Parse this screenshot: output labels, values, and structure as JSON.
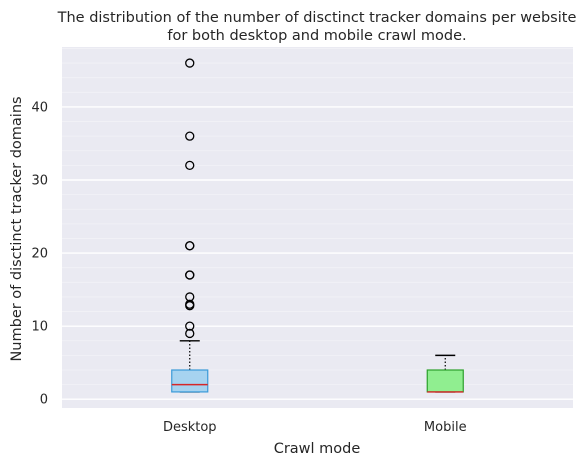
{
  "chart_data": {
    "type": "box",
    "title": "The distribution of the number of disctinct tracker domains per website\nfor both desktop and mobile crawl mode.",
    "xlabel": "Crawl mode",
    "ylabel": "Number of disctinct tracker domains",
    "categories": [
      "Desktop",
      "Mobile"
    ],
    "ylim": [
      -1.2,
      48.2
    ],
    "yticks": [
      0,
      10,
      20,
      30,
      40
    ],
    "grid": true,
    "boxes": [
      {
        "name": "Desktop",
        "whisker_low": 1,
        "q1": 1,
        "median": 2,
        "q3": 4,
        "whisker_high": 8,
        "outliers": [
          9,
          10,
          12.8,
          13,
          14,
          17,
          17,
          21,
          21,
          32,
          36,
          46
        ],
        "fill": "#a6d3f0",
        "edge": "#3a9ad9",
        "median_color": "#d62728"
      },
      {
        "name": "Mobile",
        "whisker_low": 1,
        "q1": 1,
        "median": 1,
        "q3": 4,
        "whisker_high": 6,
        "outliers": [],
        "fill": "#90ee90",
        "edge": "#2ca02c",
        "median_color": "#d62728"
      }
    ],
    "colors": {
      "plot_background": "#eaeaf2",
      "grid_major": "#ffffff",
      "whisker": "#000000",
      "outlier_edge": "#000000"
    }
  }
}
